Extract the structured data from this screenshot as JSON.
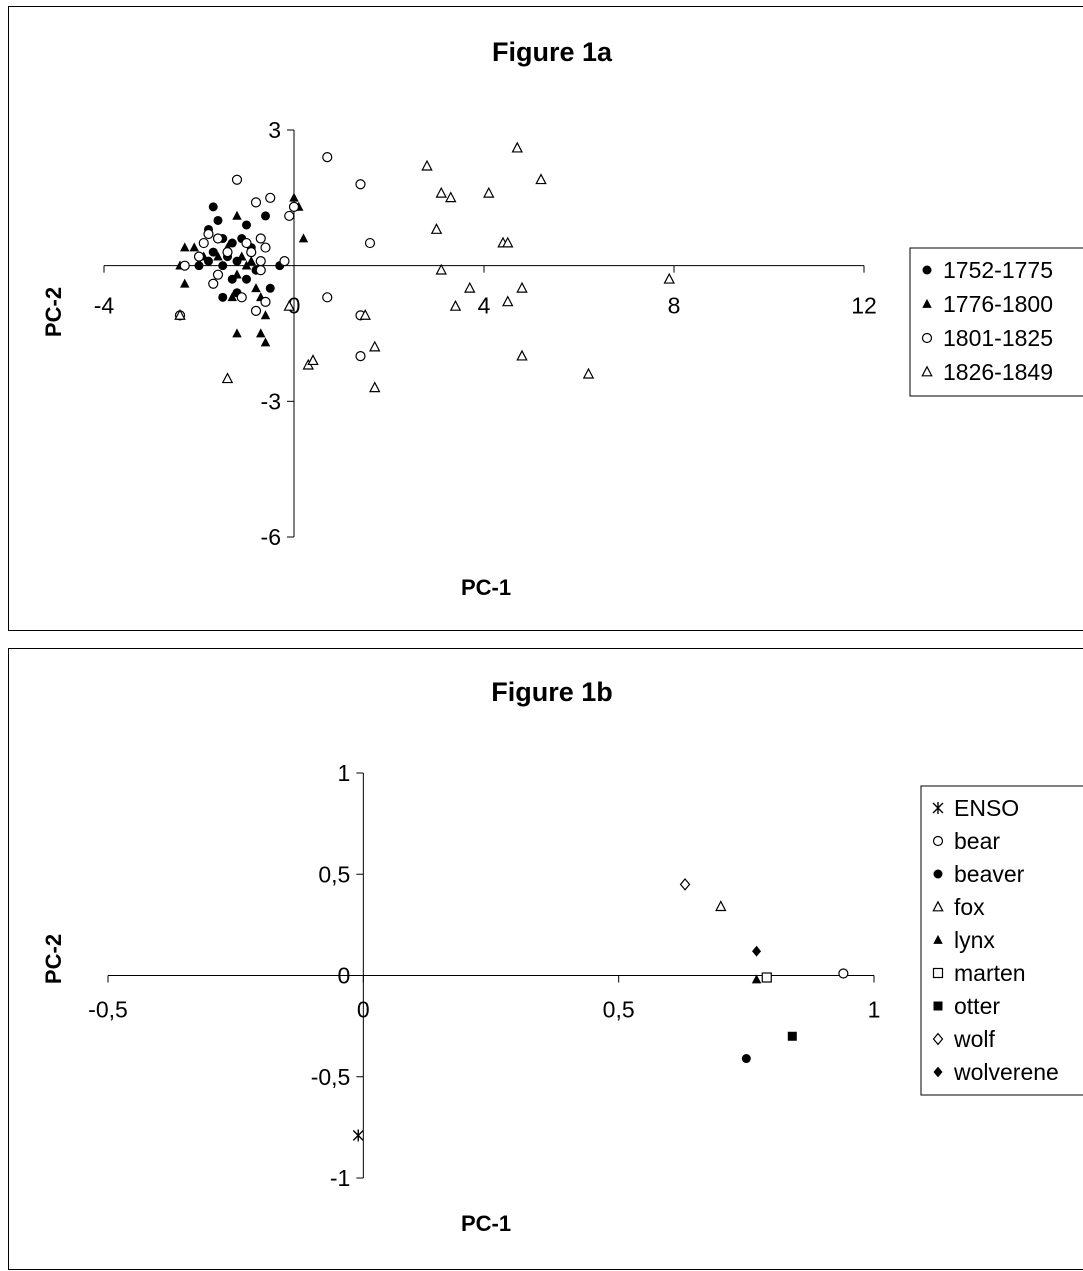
{
  "chart_data": [
    {
      "type": "scatter",
      "title": "Figure 1a",
      "xlabel": "PC-1",
      "ylabel": "PC-2",
      "xlim": [
        -4,
        12
      ],
      "ylim": [
        -6,
        3
      ],
      "x_ticks": [
        -4,
        0,
        4,
        8,
        12
      ],
      "x_tick_labels": [
        "-4",
        "0",
        "4",
        "8",
        "12"
      ],
      "y_ticks": [
        3,
        -3,
        -6
      ],
      "y_tick_labels": [
        "3",
        "-3",
        "-6"
      ],
      "grid": false,
      "legend_position": "right",
      "series": [
        {
          "name": "1752-1775",
          "marker": "filled-circle",
          "points": [
            [
              -1.7,
              1.3
            ],
            [
              -1.6,
              1.0
            ],
            [
              -1.8,
              0.8
            ],
            [
              -1.5,
              0.6
            ],
            [
              -1.9,
              0.5
            ],
            [
              -1.3,
              0.5
            ],
            [
              -1.7,
              0.3
            ],
            [
              -1.4,
              0.2
            ],
            [
              -1.2,
              0.1
            ],
            [
              -1.8,
              0.1
            ],
            [
              -1.5,
              0.0
            ],
            [
              -1.6,
              -0.2
            ],
            [
              -1.3,
              -0.3
            ],
            [
              -1.0,
              -0.3
            ],
            [
              -1.7,
              -0.4
            ],
            [
              -1.1,
              0.6
            ],
            [
              -0.9,
              0.4
            ],
            [
              -0.6,
              1.1
            ],
            [
              -0.7,
              0.6
            ],
            [
              -1.0,
              0.9
            ],
            [
              -0.8,
              -0.1
            ],
            [
              -0.5,
              -0.5
            ],
            [
              -1.5,
              -0.7
            ],
            [
              -1.2,
              -0.6
            ],
            [
              -2.0,
              0.0
            ],
            [
              -0.3,
              0.0
            ]
          ]
        },
        {
          "name": "1776-1800",
          "marker": "filled-triangle",
          "points": [
            [
              -2.3,
              0.4
            ],
            [
              -2.1,
              0.4
            ],
            [
              -1.9,
              0.2
            ],
            [
              -2.4,
              0.0
            ],
            [
              -2.3,
              -0.4
            ],
            [
              -1.6,
              0.2
            ],
            [
              -1.4,
              0.4
            ],
            [
              -1.2,
              1.1
            ],
            [
              -1.1,
              0.2
            ],
            [
              -0.9,
              0.1
            ],
            [
              -1.0,
              0.0
            ],
            [
              -1.2,
              -0.2
            ],
            [
              -0.8,
              -0.5
            ],
            [
              -1.3,
              -0.7
            ],
            [
              -0.7,
              -0.7
            ],
            [
              -0.1,
              -0.9
            ],
            [
              -0.6,
              -1.1
            ],
            [
              -0.7,
              -1.5
            ],
            [
              -0.6,
              -1.7
            ],
            [
              -1.2,
              -1.5
            ],
            [
              0.0,
              1.5
            ],
            [
              0.1,
              1.3
            ],
            [
              0.2,
              0.6
            ]
          ]
        },
        {
          "name": "1801-1825",
          "marker": "open-circle",
          "points": [
            [
              -1.2,
              1.9
            ],
            [
              -0.8,
              1.4
            ],
            [
              -0.5,
              1.5
            ],
            [
              -1.6,
              0.6
            ],
            [
              -1.8,
              0.7
            ],
            [
              -1.9,
              0.5
            ],
            [
              -1.4,
              0.3
            ],
            [
              -0.7,
              0.6
            ],
            [
              -0.6,
              0.4
            ],
            [
              -1.0,
              0.5
            ],
            [
              -0.9,
              0.3
            ],
            [
              -0.7,
              0.1
            ],
            [
              -2.0,
              0.2
            ],
            [
              -2.3,
              0.0
            ],
            [
              -1.6,
              -0.2
            ],
            [
              -0.7,
              -0.1
            ],
            [
              -1.1,
              -0.7
            ],
            [
              -1.7,
              -0.4
            ],
            [
              -0.6,
              -0.8
            ],
            [
              -0.8,
              -1.0
            ],
            [
              -0.2,
              0.1
            ],
            [
              -0.1,
              1.1
            ],
            [
              0.0,
              1.3
            ],
            [
              0.7,
              2.4
            ],
            [
              1.4,
              1.8
            ],
            [
              1.6,
              0.5
            ],
            [
              0.7,
              -0.7
            ],
            [
              1.4,
              -1.1
            ],
            [
              1.4,
              -2.0
            ],
            [
              -2.4,
              -1.1
            ]
          ]
        },
        {
          "name": "1826-1849",
          "marker": "open-triangle",
          "points": [
            [
              2.8,
              2.2
            ],
            [
              3.1,
              1.6
            ],
            [
              3.3,
              1.5
            ],
            [
              4.1,
              1.6
            ],
            [
              4.7,
              2.6
            ],
            [
              5.2,
              1.9
            ],
            [
              3.0,
              0.8
            ],
            [
              4.4,
              0.5
            ],
            [
              4.5,
              0.5
            ],
            [
              3.1,
              -0.1
            ],
            [
              3.7,
              -0.5
            ],
            [
              4.8,
              -0.5
            ],
            [
              3.4,
              -0.9
            ],
            [
              4.5,
              -0.8
            ],
            [
              1.5,
              -1.1
            ],
            [
              1.7,
              -1.8
            ],
            [
              4.8,
              -2.0
            ],
            [
              0.3,
              -2.2
            ],
            [
              0.4,
              -2.1
            ],
            [
              6.2,
              -2.4
            ],
            [
              1.7,
              -2.7
            ],
            [
              -1.4,
              -2.5
            ],
            [
              -0.1,
              -0.9
            ],
            [
              7.9,
              -0.3
            ],
            [
              -2.4,
              -1.1
            ]
          ]
        }
      ]
    },
    {
      "type": "scatter",
      "title": "Figure 1b",
      "xlabel": "PC-1",
      "ylabel": "PC-2",
      "xlim": [
        -0.5,
        1
      ],
      "ylim": [
        -1,
        1
      ],
      "x_ticks": [
        -0.5,
        0,
        0.5,
        1
      ],
      "x_tick_labels": [
        "-0,5",
        "0",
        "0,5",
        "1"
      ],
      "y_ticks": [
        1,
        0.5,
        0,
        -0.5,
        -1
      ],
      "y_tick_labels": [
        "1",
        "0,5",
        "0",
        "-0,5",
        "-1"
      ],
      "grid": false,
      "legend_position": "right",
      "series": [
        {
          "name": "ENSO",
          "marker": "asterisk",
          "points": [
            [
              -0.01,
              -0.79
            ]
          ]
        },
        {
          "name": "bear",
          "marker": "open-circle",
          "points": [
            [
              0.94,
              0.01
            ]
          ]
        },
        {
          "name": "beaver",
          "marker": "filled-circle",
          "points": [
            [
              0.75,
              -0.41
            ]
          ]
        },
        {
          "name": "fox",
          "marker": "open-triangle",
          "points": [
            [
              0.7,
              0.34
            ]
          ]
        },
        {
          "name": "lynx",
          "marker": "filled-triangle",
          "points": [
            [
              0.77,
              -0.02
            ]
          ]
        },
        {
          "name": "marten",
          "marker": "open-square",
          "points": [
            [
              0.79,
              -0.01
            ]
          ]
        },
        {
          "name": "otter",
          "marker": "filled-square",
          "points": [
            [
              0.84,
              -0.3
            ]
          ]
        },
        {
          "name": "wolf",
          "marker": "open-diamond",
          "points": [
            [
              0.63,
              0.45
            ]
          ]
        },
        {
          "name": "wolverene",
          "marker": "filled-diamond",
          "points": [
            [
              0.77,
              0.12
            ]
          ]
        }
      ]
    }
  ]
}
